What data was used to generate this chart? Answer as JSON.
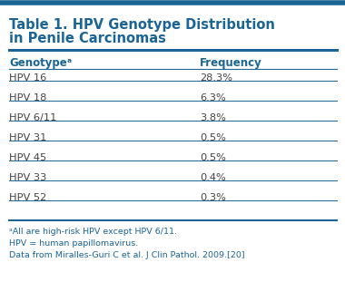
{
  "title_line1": "Table 1. HPV Genotype Distribution",
  "title_line2": "in Penile Carcinomas",
  "col1_header": "Genotypeᵃ",
  "col2_header": "Frequency",
  "rows": [
    [
      "HPV 16",
      "28.3%"
    ],
    [
      "HPV 18",
      "6.3%"
    ],
    [
      "HPV 6/11",
      "3.8%"
    ],
    [
      "HPV 31",
      "0.5%"
    ],
    [
      "HPV 45",
      "0.5%"
    ],
    [
      "HPV 33",
      "0.4%"
    ],
    [
      "HPV 52",
      "0.3%"
    ]
  ],
  "footnotes": [
    "ᵃAll are high-risk HPV except HPV 6/11.",
    "HPV = human papillomavirus.",
    "Data from Miralles-Guri C et al. J Clin Pathol. 2009.[20]"
  ],
  "header_color": "#1a6496",
  "title_color": "#1a6496",
  "row_text_color": "#444444",
  "footnote_color": "#1a6496",
  "line_color": "#1a6496",
  "top_bar_color": "#1a6496",
  "bg_color": "#ffffff",
  "title_fontsize": 10.5,
  "header_fontsize": 8.5,
  "row_fontsize": 8.2,
  "footnote_fontsize": 6.8
}
